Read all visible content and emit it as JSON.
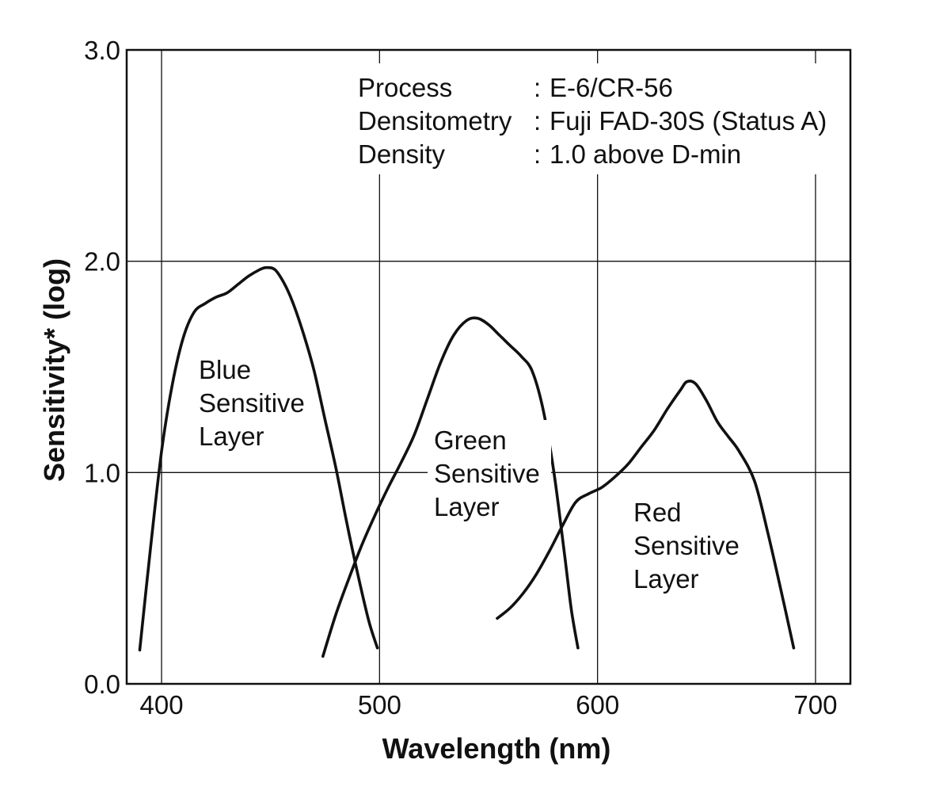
{
  "chart_data": {
    "type": "line",
    "xlabel": "Wavelength (nm)",
    "ylabel": "Sensitivity* (log)",
    "xlim": [
      384,
      716
    ],
    "ylim": [
      0.0,
      3.0
    ],
    "x_ticks": [
      400,
      500,
      600,
      700
    ],
    "x_tick_labels": [
      "400",
      "500",
      "600",
      "700"
    ],
    "y_ticks": [
      0.0,
      1.0,
      2.0,
      3.0
    ],
    "y_tick_labels": [
      "0.0",
      "1.0",
      "2.0",
      "3.0"
    ],
    "grid": true,
    "annotation": [
      {
        "key": "Process",
        "sep": ":",
        "value": "E-6/CR-56"
      },
      {
        "key": "Densitometry",
        "sep": ":",
        "value": "Fuji FAD-30S (Status A)"
      },
      {
        "key": "Density",
        "sep": ":",
        "value": "1.0 above D-min"
      }
    ],
    "series": [
      {
        "label_lines": [
          "Blue",
          "Sensitive",
          "Layer"
        ],
        "x": [
          390,
          395,
          400,
          405,
          410,
          415,
          420,
          425,
          430,
          435,
          440,
          445,
          448,
          452,
          456,
          460,
          465,
          470,
          475,
          480,
          485,
          490,
          495,
          499
        ],
        "y": [
          0.16,
          0.65,
          1.1,
          1.42,
          1.64,
          1.76,
          1.8,
          1.83,
          1.85,
          1.89,
          1.93,
          1.96,
          1.97,
          1.96,
          1.9,
          1.81,
          1.66,
          1.48,
          1.25,
          1.02,
          0.76,
          0.52,
          0.3,
          0.17
        ]
      },
      {
        "label_lines": [
          "Green",
          "Sensitive",
          "Layer"
        ],
        "x": [
          474,
          480,
          486,
          492,
          498,
          504,
          510,
          516,
          522,
          528,
          534,
          540,
          545,
          550,
          555,
          560,
          565,
          570,
          575,
          580,
          585,
          588,
          591
        ],
        "y": [
          0.13,
          0.33,
          0.5,
          0.66,
          0.8,
          0.93,
          1.05,
          1.18,
          1.35,
          1.52,
          1.65,
          1.72,
          1.73,
          1.7,
          1.65,
          1.6,
          1.55,
          1.48,
          1.3,
          1.0,
          0.6,
          0.35,
          0.17
        ]
      },
      {
        "label_lines": [
          "Red",
          "Sensitive",
          "Layer"
        ],
        "x": [
          554,
          560,
          566,
          572,
          578,
          584,
          590,
          596,
          602,
          608,
          614,
          620,
          626,
          632,
          638,
          641,
          645,
          650,
          655,
          660,
          665,
          672,
          678,
          684,
          690
        ],
        "y": [
          0.31,
          0.36,
          0.43,
          0.52,
          0.63,
          0.75,
          0.86,
          0.9,
          0.93,
          0.98,
          1.04,
          1.12,
          1.2,
          1.3,
          1.39,
          1.43,
          1.42,
          1.34,
          1.24,
          1.17,
          1.1,
          0.96,
          0.72,
          0.45,
          0.17
        ]
      }
    ]
  }
}
